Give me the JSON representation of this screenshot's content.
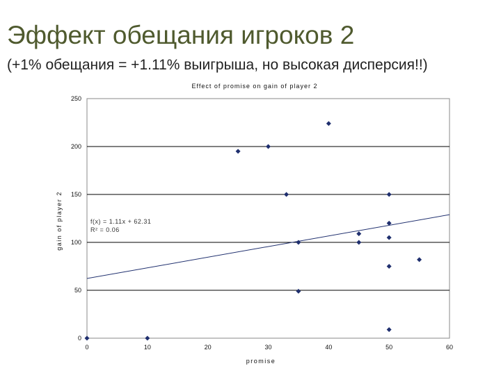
{
  "slide": {
    "title": "Эффект обещания игроков 2",
    "subtitle": "(+1% обещания = +1.11% выигрыша, но высокая дисперсия!!)"
  },
  "chart_data": {
    "type": "scatter",
    "title": "Effect of promise on gain of player 2",
    "xlabel": "promise",
    "ylabel": "gain of player 2",
    "xlim": [
      0,
      60
    ],
    "ylim": [
      0,
      250
    ],
    "xticks": [
      0,
      10,
      20,
      30,
      40,
      50,
      60
    ],
    "yticks": [
      0,
      50,
      100,
      150,
      200,
      250
    ],
    "grid": "horizontal",
    "series": [
      {
        "marker": "diamond",
        "color": "#1f2f6e",
        "x": [
          0,
          10,
          25,
          30,
          33,
          35,
          35,
          40,
          45,
          45,
          50,
          50,
          50,
          50,
          50,
          55
        ],
        "y": [
          0,
          0,
          195,
          200,
          150,
          100,
          49,
          224,
          109,
          100,
          150,
          120,
          105,
          75,
          9,
          82
        ]
      }
    ],
    "trendline": {
      "slope": 1.11,
      "intercept": 62.31,
      "color": "#1f2f6e"
    },
    "annotations": {
      "equation": "f(x) = 1.11x + 62.31",
      "r_squared": "R² = 0.06"
    }
  }
}
